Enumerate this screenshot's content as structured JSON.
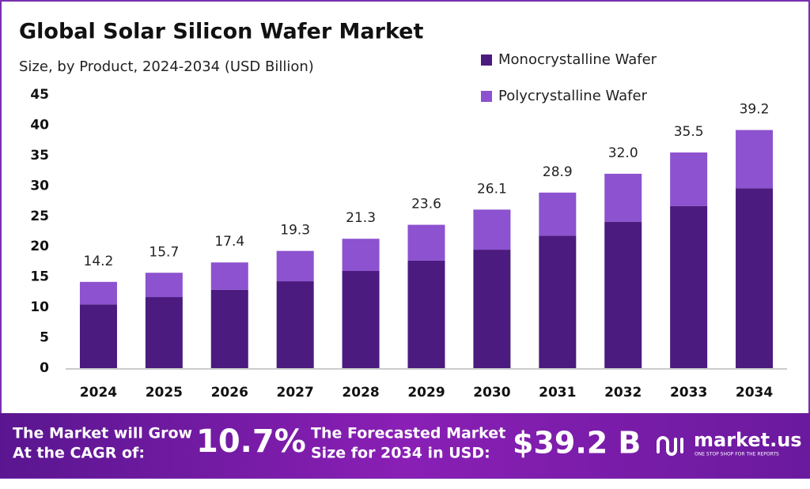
{
  "chart_data": {
    "type": "stacked_bar",
    "title": "Global Solar Silicon Wafer Market",
    "subtitle": "Size, by Product, 2024-2034 (USD Billion)",
    "categories": [
      "2024",
      "2025",
      "2026",
      "2027",
      "2028",
      "2029",
      "2030",
      "2031",
      "2032",
      "2033",
      "2034"
    ],
    "series": [
      {
        "name": "Monocrystalline Wafer",
        "color": "#4b1b7f",
        "values": [
          10.5,
          11.7,
          12.9,
          14.3,
          16.0,
          17.7,
          19.5,
          21.8,
          24.1,
          26.7,
          29.6
        ]
      },
      {
        "name": "Polycrystalline Wafer",
        "color": "#8c52cf",
        "values": [
          3.7,
          4.0,
          4.5,
          5.0,
          5.3,
          5.9,
          6.6,
          7.1,
          7.9,
          8.8,
          9.6
        ]
      }
    ],
    "totals": {
      "values": [
        14.2,
        15.7,
        17.4,
        19.3,
        21.3,
        23.6,
        26.1,
        28.9,
        32.0,
        35.5,
        39.2
      ],
      "value_labels": [
        "14.2",
        "15.7",
        "17.4",
        "19.3",
        "21.3",
        "23.6",
        "26.1",
        "28.9",
        "32.0",
        "35.5",
        "39.2"
      ]
    },
    "ylim": [
      0,
      45
    ],
    "yticks": [
      0,
      5,
      10,
      15,
      20,
      25,
      30,
      35,
      40,
      45
    ],
    "grid": false,
    "legend": "top-right"
  },
  "footer": {
    "cagr_label": [
      "The Market will Grow",
      "At the CAGR of:"
    ],
    "cagr": "10.7%",
    "forecast_label": [
      "The Forecasted Market",
      "Size for 2034 in USD:"
    ],
    "forecast": "$39.2 B",
    "brand": "market.us",
    "tagline": "ONE STOP SHOP FOR THE REPORTS"
  }
}
